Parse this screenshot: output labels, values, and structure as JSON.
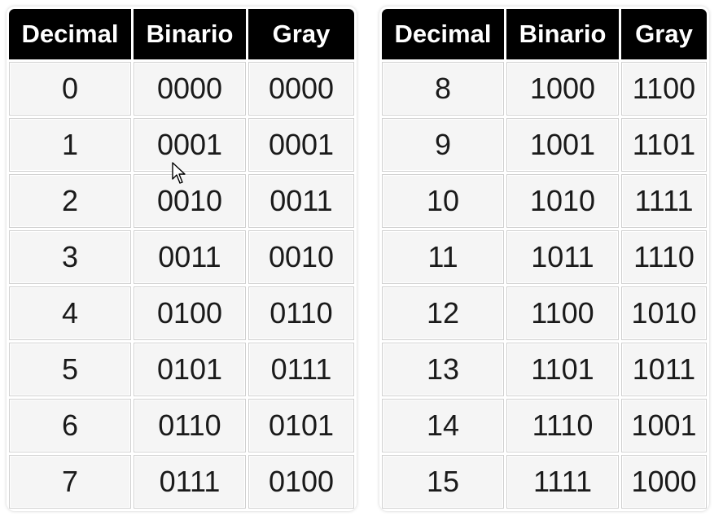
{
  "left_table": {
    "headers": [
      "Decimal",
      "Binario",
      "Gray"
    ],
    "rows": [
      [
        "0",
        "0000",
        "0000"
      ],
      [
        "1",
        "0001",
        "0001"
      ],
      [
        "2",
        "0010",
        "0011"
      ],
      [
        "3",
        "0011",
        "0010"
      ],
      [
        "4",
        "0100",
        "0110"
      ],
      [
        "5",
        "0101",
        "0111"
      ],
      [
        "6",
        "0110",
        "0101"
      ],
      [
        "7",
        "0111",
        "0100"
      ]
    ]
  },
  "right_table": {
    "headers": [
      "Decimal",
      "Binario",
      "Gray"
    ],
    "rows": [
      [
        "8",
        "1000",
        "1100"
      ],
      [
        "9",
        "1001",
        "1101"
      ],
      [
        "10",
        "1010",
        "1111"
      ],
      [
        "11",
        "1011",
        "1110"
      ],
      [
        "12",
        "1100",
        "1010"
      ],
      [
        "13",
        "1101",
        "1011"
      ],
      [
        "14",
        "1110",
        "1001"
      ],
      [
        "15",
        "1111",
        "1000"
      ]
    ]
  },
  "colors": {
    "header_bg": "#000000",
    "header_text": "#ffffff",
    "cell_bg": "#f5f5f5",
    "cell_text": "#1a1a1a"
  },
  "icons": {
    "cursor": "mouse-pointer-icon"
  }
}
